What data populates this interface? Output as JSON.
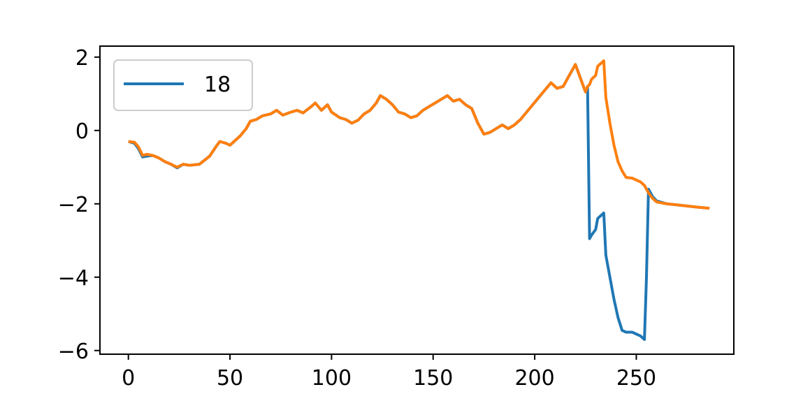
{
  "chart_data": {
    "type": "line",
    "title": "",
    "xlabel": "",
    "ylabel": "",
    "xlim": [
      -14,
      298
    ],
    "ylim": [
      -6.1,
      2.3
    ],
    "x_ticks": [
      0,
      50,
      100,
      150,
      200,
      250
    ],
    "y_ticks": [
      2,
      0,
      -2,
      -4,
      -6
    ],
    "x_tick_labels": [
      "0",
      "50",
      "100",
      "150",
      "200",
      "250"
    ],
    "y_tick_labels": [
      "2",
      "0",
      "−2",
      "−4",
      "−6"
    ],
    "grid": false,
    "legend": {
      "position": "upper-left",
      "entries": [
        "18"
      ]
    },
    "series": [
      {
        "name": "18",
        "color": "#1f77b4",
        "x": [
          0,
          3,
          5,
          7,
          9,
          12,
          15,
          18,
          21,
          24,
          27,
          30,
          35,
          40,
          43,
          45,
          48,
          50,
          52,
          55,
          58,
          60,
          63,
          66,
          70,
          73,
          76,
          80,
          83,
          86,
          90,
          92,
          95,
          98,
          100,
          104,
          107,
          110,
          113,
          116,
          119,
          122,
          124,
          127,
          130,
          133,
          136,
          139,
          142,
          145,
          148,
          151,
          154,
          157,
          160,
          163,
          166,
          169,
          172,
          175,
          178,
          181,
          184,
          187,
          190,
          193,
          196,
          199,
          202,
          205,
          208,
          211,
          214,
          217,
          220,
          222,
          224,
          225,
          226,
          227,
          228,
          230,
          231,
          233,
          234,
          235,
          237,
          239,
          241,
          243,
          245,
          248,
          252,
          254,
          255,
          256,
          258,
          260,
          265,
          270,
          275,
          280,
          286
        ],
        "y": [
          -0.3,
          -0.35,
          -0.5,
          -0.72,
          -0.7,
          -0.68,
          -0.75,
          -0.85,
          -0.92,
          -1.02,
          -0.92,
          -0.95,
          -0.92,
          -0.7,
          -0.45,
          -0.3,
          -0.35,
          -0.4,
          -0.3,
          -0.15,
          0.05,
          0.25,
          0.3,
          0.4,
          0.45,
          0.55,
          0.42,
          0.5,
          0.55,
          0.48,
          0.65,
          0.75,
          0.55,
          0.7,
          0.5,
          0.35,
          0.3,
          0.2,
          0.28,
          0.45,
          0.55,
          0.75,
          0.95,
          0.85,
          0.7,
          0.5,
          0.45,
          0.35,
          0.4,
          0.55,
          0.65,
          0.75,
          0.85,
          0.95,
          0.8,
          0.85,
          0.7,
          0.6,
          0.2,
          -0.1,
          -0.05,
          0.05,
          0.15,
          0.05,
          0.15,
          0.3,
          0.5,
          0.7,
          0.9,
          1.1,
          1.3,
          1.15,
          1.2,
          1.5,
          1.8,
          1.5,
          1.2,
          1.05,
          1.2,
          -2.95,
          -2.85,
          -2.7,
          -2.4,
          -2.3,
          -2.25,
          -3.4,
          -4.0,
          -4.6,
          -5.1,
          -5.45,
          -5.5,
          -5.5,
          -5.6,
          -5.7,
          -4.0,
          -1.6,
          -1.8,
          -1.92,
          -2.0,
          -2.03,
          -2.06,
          -2.09,
          -2.12
        ]
      },
      {
        "name": "",
        "color": "#ff7f0e",
        "x": [
          0,
          3,
          5,
          7,
          9,
          12,
          15,
          18,
          21,
          24,
          27,
          30,
          35,
          40,
          43,
          45,
          48,
          50,
          52,
          55,
          58,
          60,
          63,
          66,
          70,
          73,
          76,
          80,
          83,
          86,
          90,
          92,
          95,
          98,
          100,
          104,
          107,
          110,
          113,
          116,
          119,
          122,
          124,
          127,
          130,
          133,
          136,
          139,
          142,
          145,
          148,
          151,
          154,
          157,
          160,
          163,
          166,
          169,
          172,
          175,
          178,
          181,
          184,
          187,
          190,
          193,
          196,
          199,
          202,
          205,
          208,
          211,
          214,
          217,
          220,
          222,
          224,
          225,
          226,
          227,
          228,
          230,
          231,
          233,
          234,
          235,
          237,
          239,
          241,
          243,
          245,
          248,
          252,
          254,
          255,
          256,
          258,
          260,
          265,
          270,
          275,
          280,
          286
        ],
        "y": [
          -0.3,
          -0.32,
          -0.45,
          -0.68,
          -0.65,
          -0.68,
          -0.75,
          -0.85,
          -0.92,
          -1.0,
          -0.92,
          -0.95,
          -0.92,
          -0.7,
          -0.45,
          -0.3,
          -0.35,
          -0.4,
          -0.3,
          -0.15,
          0.05,
          0.25,
          0.3,
          0.4,
          0.45,
          0.55,
          0.42,
          0.5,
          0.55,
          0.48,
          0.65,
          0.75,
          0.55,
          0.7,
          0.5,
          0.35,
          0.3,
          0.2,
          0.28,
          0.45,
          0.55,
          0.75,
          0.95,
          0.85,
          0.7,
          0.5,
          0.45,
          0.35,
          0.4,
          0.55,
          0.65,
          0.75,
          0.85,
          0.95,
          0.8,
          0.85,
          0.7,
          0.6,
          0.2,
          -0.1,
          -0.05,
          0.05,
          0.15,
          0.05,
          0.15,
          0.3,
          0.5,
          0.7,
          0.9,
          1.1,
          1.3,
          1.15,
          1.2,
          1.5,
          1.8,
          1.5,
          1.2,
          1.05,
          1.2,
          1.25,
          1.4,
          1.5,
          1.75,
          1.85,
          1.9,
          0.9,
          0.2,
          -0.4,
          -0.85,
          -1.1,
          -1.28,
          -1.3,
          -1.4,
          -1.5,
          -1.6,
          -1.7,
          -1.85,
          -1.95,
          -2.0,
          -2.03,
          -2.06,
          -2.09,
          -2.12
        ]
      }
    ]
  }
}
